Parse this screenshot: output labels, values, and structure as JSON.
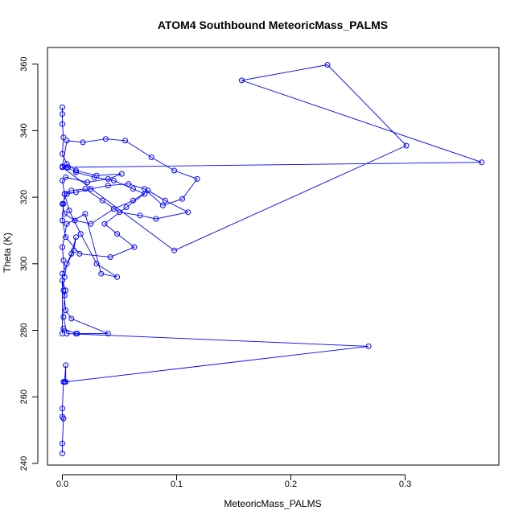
{
  "chart_data": {
    "type": "line",
    "title": "ATOM4 Southbound MeteoricMass_PALMS",
    "xlabel": "MeteoricMass_PALMS",
    "ylabel": "Theta (K)",
    "xlim": [
      -0.013,
      0.382
    ],
    "ylim": [
      239.5,
      365
    ],
    "x_ticks": [
      0.0,
      0.1,
      0.2,
      0.3
    ],
    "x_tick_labels": [
      "0.0",
      "0.1",
      "0.2",
      "0.3"
    ],
    "y_ticks": [
      240,
      260,
      280,
      300,
      320,
      340,
      360
    ],
    "y_tick_labels": [
      "240",
      "260",
      "280",
      "300",
      "320",
      "340",
      "360"
    ],
    "grid": false,
    "legend": "none",
    "series": [
      {
        "color": "#0000ff",
        "marker": "open-circle",
        "x": [
          0.0,
          0.0,
          0.001,
          0.0,
          0.0,
          0.001,
          0.002,
          0.003,
          0.003,
          0.268,
          0.004,
          0.001,
          0.002,
          0.003,
          0.0,
          0.0,
          0.001,
          0.012,
          0.013,
          0.04,
          0.008,
          0.003,
          0.001,
          0.0,
          0.01,
          0.012,
          0.008,
          0.004,
          0.002,
          0.001,
          0.0,
          0.004,
          0.02,
          0.034,
          0.048,
          0.03,
          0.016,
          0.006,
          0.002,
          0.001,
          0.0,
          0.003,
          0.015,
          0.042,
          0.063,
          0.048,
          0.037,
          0.056,
          0.072,
          0.062,
          0.045,
          0.028,
          0.012,
          0.004,
          0.0,
          0.098,
          0.301,
          0.232,
          0.157,
          0.367,
          0.005,
          0.0,
          0.004,
          0.018,
          0.038,
          0.055,
          0.078,
          0.098,
          0.118,
          0.105,
          0.088,
          0.072,
          0.058,
          0.04,
          0.025,
          0.012,
          0.004,
          0.0,
          0.002,
          0.011,
          0.025,
          0.045,
          0.062,
          0.075,
          0.09,
          0.11,
          0.082,
          0.068,
          0.05,
          0.035,
          0.02,
          0.008,
          0.002,
          0.0,
          0.003,
          0.022,
          0.04,
          0.052,
          0.03,
          0.012,
          0.004,
          0.0,
          0.001,
          0.0,
          0.0,
          0.0
        ],
        "y": [
          243,
          246,
          253.5,
          254,
          256.5,
          264.5,
          264.5,
          269.5,
          264.5,
          275.2,
          279,
          284,
          290.5,
          292,
          295,
          279,
          280.5,
          279,
          279,
          279,
          283.5,
          286,
          292,
          297,
          304,
          308,
          303,
          300,
          296,
          301,
          305,
          312,
          315,
          297,
          296,
          300,
          309,
          316,
          321,
          318,
          313,
          308,
          303,
          302,
          305,
          309,
          312,
          317,
          321,
          322.5,
          325,
          326,
          327.5,
          329,
          329,
          304,
          335.5,
          359.8,
          355.1,
          330.5,
          329,
          329.2,
          337,
          336.5,
          337.5,
          337,
          332,
          328,
          325.5,
          319.5,
          317.5,
          322.5,
          324,
          323.5,
          322.5,
          321.5,
          321,
          318,
          315,
          313,
          312,
          316.5,
          319,
          322,
          319,
          315.5,
          313.5,
          314.5,
          315.5,
          319,
          322.5,
          322,
          321,
          325,
          326,
          324.5,
          325.5,
          327,
          326.5,
          328,
          330,
          333,
          338,
          342,
          345,
          347
        ]
      }
    ]
  }
}
